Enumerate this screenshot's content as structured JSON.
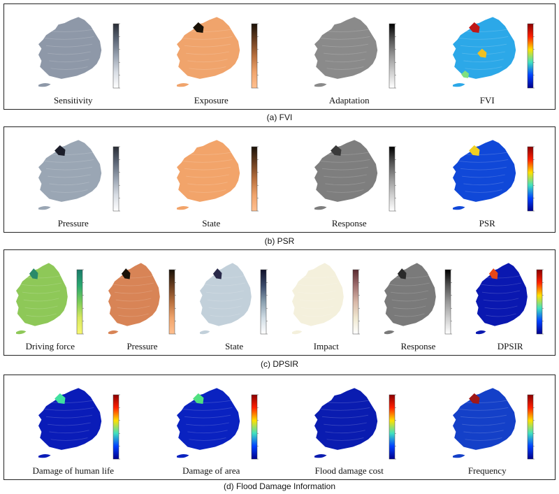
{
  "panels": [
    {
      "caption": "(a) FVI",
      "maps": [
        {
          "label": "Sensitivity",
          "base": "#8e98a8",
          "colormap": "gray-blue",
          "highlights": []
        },
        {
          "label": "Exposure",
          "base": "#f0a46c",
          "colormap": "copper",
          "highlights": [
            "#1a1208"
          ]
        },
        {
          "label": "Adaptation",
          "base": "#8a8a8a",
          "colormap": "gray",
          "highlights": []
        },
        {
          "label": "FVI",
          "base": "#2ca8e8",
          "colormap": "jet",
          "highlights": [
            "#c01818",
            "#f0c020",
            "#80e080"
          ]
        }
      ]
    },
    {
      "caption": "(b) PSR",
      "maps": [
        {
          "label": "Pressure",
          "base": "#9aa6b4",
          "colormap": "gray-blue",
          "highlights": [
            "#1c1e2a"
          ]
        },
        {
          "label": "State",
          "base": "#f2a46a",
          "colormap": "copper",
          "highlights": []
        },
        {
          "label": "Response",
          "base": "#7e7e7e",
          "colormap": "gray",
          "highlights": [
            "#3a3a3a"
          ]
        },
        {
          "label": "PSR",
          "base": "#1048d8",
          "colormap": "jet",
          "highlights": [
            "#f0d020"
          ]
        }
      ]
    },
    {
      "caption": "(c) DPSIR",
      "maps": [
        {
          "label": "Driving force",
          "base": "#8ec858",
          "colormap": "viridis-green",
          "highlights": [
            "#2a8a6a"
          ]
        },
        {
          "label": "Pressure",
          "base": "#d88456",
          "colormap": "copper",
          "highlights": [
            "#1a1208"
          ]
        },
        {
          "label": "State",
          "base": "#c2d0da",
          "colormap": "bone-blue",
          "highlights": [
            "#2a2a4a"
          ]
        },
        {
          "label": "Impact",
          "base": "#f4f0dc",
          "colormap": "pink",
          "highlights": []
        },
        {
          "label": "Response",
          "base": "#7a7a7a",
          "colormap": "gray",
          "highlights": [
            "#2a2a2a"
          ]
        },
        {
          "label": "DPSIR",
          "base": "#0a18b0",
          "colormap": "jet",
          "highlights": [
            "#e84818"
          ]
        }
      ]
    },
    {
      "caption": "(d) Flood Damage Information",
      "maps": [
        {
          "label": "Damage of human life",
          "base": "#0a1cb8",
          "colormap": "jet",
          "highlights": [
            "#40e0a0"
          ]
        },
        {
          "label": "Damage of area",
          "base": "#0a22c0",
          "colormap": "jet",
          "highlights": [
            "#50e080"
          ]
        },
        {
          "label": "Flood damage cost",
          "base": "#0a1cb0",
          "colormap": "jet",
          "highlights": []
        },
        {
          "label": "Frequency",
          "base": "#1440c8",
          "colormap": "jet",
          "highlights": [
            "#a01818"
          ]
        }
      ]
    }
  ]
}
